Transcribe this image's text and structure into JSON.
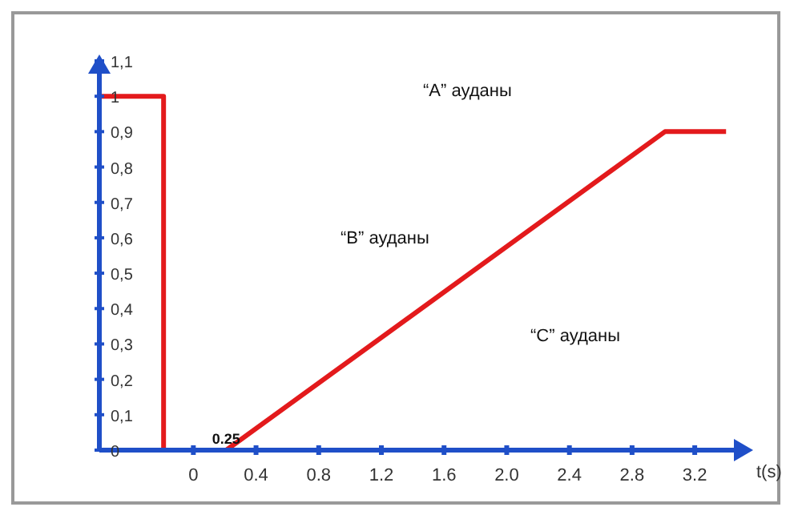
{
  "chart_data": {
    "type": "line",
    "xlabel": "t(s)",
    "xlim": [
      -0.6,
      3.45
    ],
    "xticks": [
      0,
      0.4,
      0.8,
      1.2,
      1.6,
      {
        "value": 2.0,
        "label": "2.0"
      },
      2.4,
      2.8,
      3.2
    ],
    "ylim": [
      0,
      1.1
    ],
    "yticks": [
      {
        "value": 0,
        "label": "0"
      },
      {
        "value": 0.1,
        "label": "0,1"
      },
      {
        "value": 0.2,
        "label": "0,2"
      },
      {
        "value": 0.3,
        "label": "0,3"
      },
      {
        "value": 0.4,
        "label": "0,4"
      },
      {
        "value": 0.5,
        "label": "0,5"
      },
      {
        "value": 0.6,
        "label": "0,6"
      },
      {
        "value": 0.7,
        "label": "0,7"
      },
      {
        "value": 0.8,
        "label": "0,8"
      },
      {
        "value": 0.9,
        "label": "0,9"
      },
      {
        "value": 1,
        "label": "1"
      },
      {
        "value": 1.1,
        "label": "1,1"
      }
    ],
    "x": [
      -0.6,
      -0.19,
      -0.19,
      0.21,
      3.01,
      3.4
    ],
    "series": [
      {
        "color": "#e31a1c",
        "values": [
          1,
          1,
          0,
          0,
          0.9,
          0.9
        ]
      }
    ],
    "annotations": [
      {
        "text": "0.25",
        "x": 0.21,
        "y": 0
      },
      "“A” ауданы",
      "“B” ауданы",
      "“C” ауданы"
    ],
    "grid": false
  }
}
